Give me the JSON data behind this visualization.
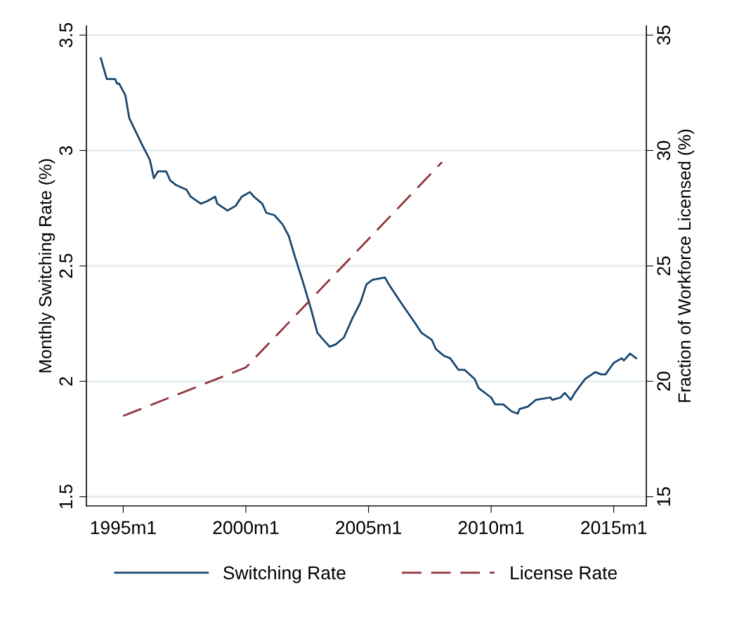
{
  "chart_data": {
    "type": "line",
    "ylabel": "Monthly Switching Rate (%)",
    "y2label": "Fraction of Workforce Licensed (%)",
    "xlim": [
      "1993-07",
      "2016-05"
    ],
    "xticks": [
      {
        "value": "1995-01",
        "label": "1995m1"
      },
      {
        "value": "2000-01",
        "label": "2000m1"
      },
      {
        "value": "2005-01",
        "label": "2005m1"
      },
      {
        "value": "2010-01",
        "label": "2010m1"
      },
      {
        "value": "2015-01",
        "label": "2015m1"
      }
    ],
    "ylim": [
      1.46,
      3.54
    ],
    "yticks": [
      1.5,
      2,
      2.5,
      3,
      3.5
    ],
    "y2lim": [
      14.6,
      35.4
    ],
    "y2ticks": [
      15,
      20,
      25,
      30,
      35
    ],
    "grid": "y",
    "legend": "bottom",
    "series": [
      {
        "name": "Switching Rate",
        "color": "#1a476f",
        "line_style": "solid",
        "x": [
          "1994-02",
          "1994-04",
          "1994-05",
          "1994-09",
          "1994-10",
          "1994-11",
          "1995-02",
          "1995-04",
          "1995-10",
          "1996-02",
          "1996-04",
          "1996-06",
          "1996-10",
          "1996-12",
          "1997-03",
          "1997-08",
          "1997-10",
          "1998-03",
          "1998-06",
          "1998-10",
          "1998-11",
          "1999-04",
          "1999-08",
          "1999-11",
          "2000-03",
          "2000-05",
          "2000-09",
          "2000-11",
          "2001-03",
          "2001-07",
          "2001-10",
          "2002-01",
          "2002-05",
          "2002-09",
          "2002-12",
          "2003-03",
          "2003-06",
          "2003-09",
          "2004-01",
          "2004-05",
          "2004-09",
          "2004-12",
          "2005-03",
          "2005-09",
          "2005-11",
          "2006-05",
          "2006-12",
          "2007-03",
          "2007-08",
          "2007-10",
          "2008-02",
          "2008-05",
          "2008-09",
          "2008-12",
          "2009-05",
          "2009-07",
          "2010-01",
          "2010-03",
          "2010-07",
          "2010-11",
          "2011-02",
          "2011-03",
          "2011-07",
          "2011-11",
          "2012-06",
          "2012-07",
          "2012-11",
          "2013-01",
          "2013-04",
          "2013-06",
          "2013-11",
          "2014-04",
          "2014-07",
          "2014-09",
          "2015-01",
          "2015-05",
          "2015-06",
          "2015-09",
          "2015-12"
        ],
        "values": [
          3.4,
          3.34,
          3.31,
          3.31,
          3.29,
          3.29,
          3.24,
          3.14,
          3.03,
          2.96,
          2.88,
          2.91,
          2.91,
          2.87,
          2.85,
          2.83,
          2.8,
          2.77,
          2.78,
          2.8,
          2.77,
          2.74,
          2.76,
          2.8,
          2.82,
          2.8,
          2.77,
          2.73,
          2.72,
          2.68,
          2.63,
          2.54,
          2.43,
          2.31,
          2.21,
          2.18,
          2.15,
          2.16,
          2.19,
          2.27,
          2.34,
          2.42,
          2.44,
          2.45,
          2.42,
          2.34,
          2.25,
          2.21,
          2.18,
          2.14,
          2.11,
          2.1,
          2.05,
          2.05,
          2.01,
          1.97,
          1.93,
          1.9,
          1.9,
          1.87,
          1.86,
          1.88,
          1.89,
          1.92,
          1.93,
          1.92,
          1.93,
          1.95,
          1.92,
          1.95,
          2.01,
          2.04,
          2.03,
          2.03,
          2.08,
          2.1,
          2.09,
          2.12,
          2.1
        ]
      },
      {
        "name": "License Rate",
        "color": "#90353b",
        "line_style": "dashed",
        "axis": "y2",
        "x": [
          "1995-01",
          "2000-01",
          "2008-01"
        ],
        "values": [
          18.5,
          20.6,
          29.5
        ]
      }
    ]
  }
}
